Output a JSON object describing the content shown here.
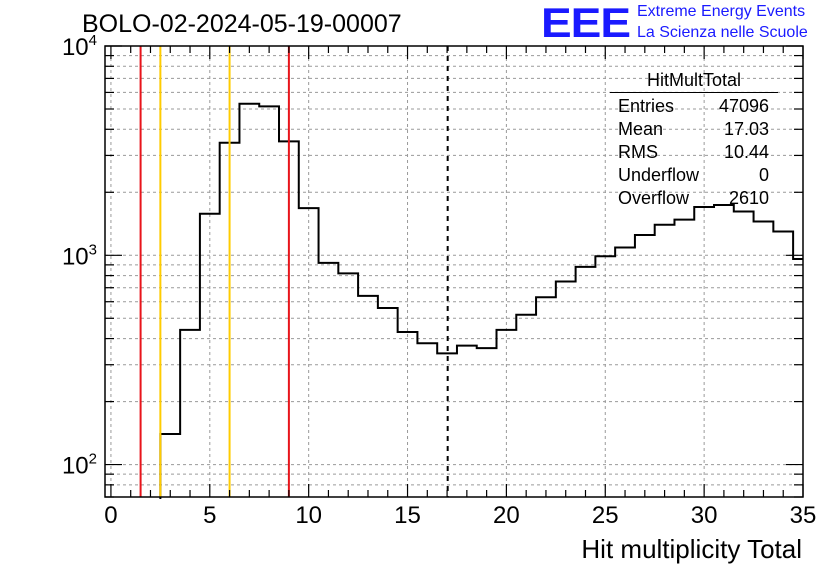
{
  "chart_data": {
    "type": "histogram",
    "title": "BOLO-02-2024-05-19-00007",
    "xlabel": "Hit multiplicity Total",
    "ylabel": "",
    "xlim": [
      -0.3,
      35
    ],
    "ylim": [
      70,
      10000
    ],
    "yscale": "log",
    "grid": true,
    "bin_edges": [
      2.5,
      3.5,
      4.5,
      5.5,
      6.5,
      7.5,
      8.5,
      9.5,
      10.5,
      11.5,
      12.5,
      13.5,
      14.5,
      15.5,
      16.5,
      17.5,
      18.5,
      19.5,
      20.5,
      21.5,
      22.5,
      23.5,
      24.5,
      25.5,
      26.5,
      27.5,
      28.5,
      29.5,
      30.5,
      31.5,
      32.5,
      33.5,
      34.5,
      35
    ],
    "counts": [
      140,
      440,
      1580,
      3450,
      5300,
      5150,
      3500,
      1680,
      920,
      820,
      640,
      560,
      430,
      380,
      340,
      370,
      360,
      440,
      520,
      630,
      750,
      880,
      990,
      1090,
      1250,
      1400,
      1480,
      1700,
      1740,
      1620,
      1450,
      1300,
      960
    ],
    "x_ticks": [
      0,
      5,
      10,
      15,
      20,
      25,
      30,
      35
    ],
    "y_ticks": [
      {
        "value": 100,
        "base": "10",
        "exp": "2"
      },
      {
        "value": 1000,
        "base": "10",
        "exp": "3"
      },
      {
        "value": 10000,
        "base": "10",
        "exp": "4"
      }
    ],
    "vertical_lines": [
      {
        "x": 1.5,
        "color": "#e8141b",
        "style": "solid"
      },
      {
        "x": 2.5,
        "color": "#ffcc00",
        "style": "solid"
      },
      {
        "x": 6.0,
        "color": "#ffcc00",
        "style": "solid"
      },
      {
        "x": 9.0,
        "color": "#e8141b",
        "style": "solid"
      },
      {
        "x": 17.03,
        "color": "#000000",
        "style": "dashed"
      }
    ]
  },
  "stats_box": {
    "title": "HitMultTotal",
    "rows": [
      {
        "label": "Entries",
        "value": "47096"
      },
      {
        "label": "Mean",
        "value": "17.03"
      },
      {
        "label": "RMS",
        "value": "10.44"
      },
      {
        "label": "Underflow",
        "value": "0"
      },
      {
        "label": "Overflow",
        "value": "2610"
      }
    ]
  },
  "logo": {
    "mark": "EEE",
    "line1": "Extreme Energy Events",
    "line2": "La Scienza nelle Scuole",
    "color": "#1a1aff"
  }
}
